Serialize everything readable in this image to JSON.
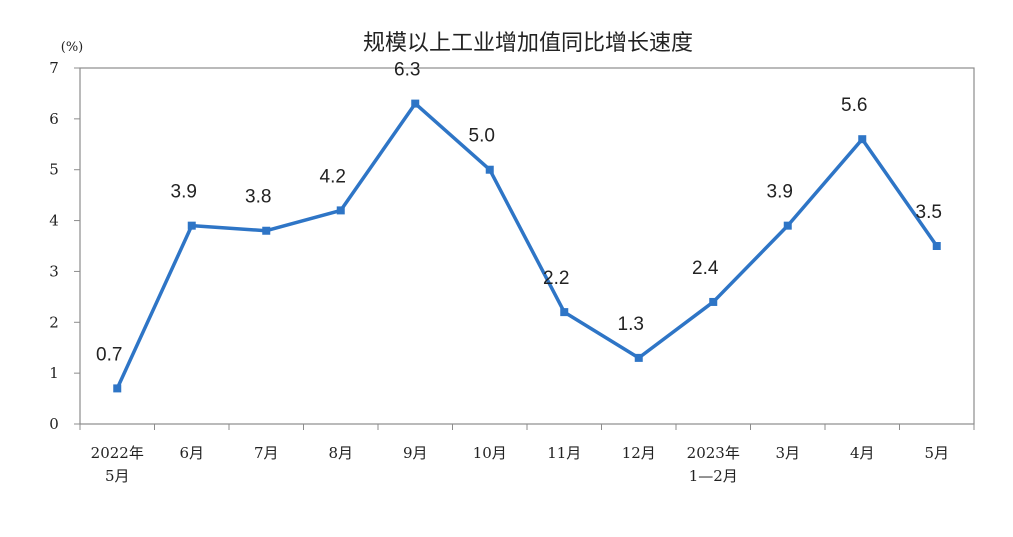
{
  "chart_data": {
    "type": "line",
    "title": "规模以上工业增加值同比增长速度",
    "unit_label": "(%)",
    "categories": [
      [
        "2022年",
        "5月"
      ],
      [
        "6月"
      ],
      [
        "7月"
      ],
      [
        "8月"
      ],
      [
        "9月"
      ],
      [
        "10月"
      ],
      [
        "11月"
      ],
      [
        "12月"
      ],
      [
        "2023年",
        "1—2月"
      ],
      [
        "3月"
      ],
      [
        "4月"
      ],
      [
        "5月"
      ]
    ],
    "series": [
      {
        "values": [
          0.7,
          3.9,
          3.8,
          4.2,
          6.3,
          5.0,
          2.2,
          1.3,
          2.4,
          3.9,
          5.6,
          3.5
        ],
        "labels": [
          "0.7",
          "3.9",
          "3.8",
          "4.2",
          "6.3",
          "5.0",
          "2.2",
          "1.3",
          "2.4",
          "3.9",
          "5.6",
          "3.5"
        ],
        "color": "#2e75c6"
      }
    ],
    "ylim": [
      0,
      7
    ],
    "yticks": [
      "0",
      "1",
      "2",
      "3",
      "4",
      "5",
      "6",
      "7"
    ],
    "grid": false,
    "legend": "none"
  }
}
